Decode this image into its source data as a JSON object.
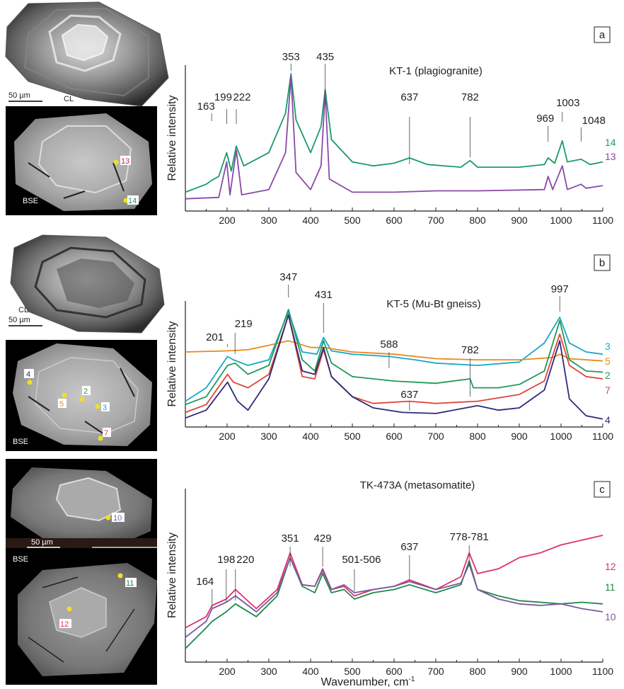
{
  "figure": {
    "x_axis_label": "Wavenumber, cm",
    "x_axis_label_sup": "-1",
    "colors": {
      "green": "#1a9a6c",
      "purple": "#8a4aa8",
      "cyan": "#19a8c8",
      "orange": "#e88a1a",
      "green2": "#1f9a5a",
      "red": "#e0453a",
      "navy": "#2d2a7a",
      "pink": "#e0306a",
      "green3": "#1f8a4a",
      "lavender": "#7a5aa0"
    }
  },
  "images": {
    "a_cl_label": "CL",
    "a_scale": "50 µm",
    "a_bse_label": "BSE",
    "a_spot_13": "13",
    "a_spot_14": "14",
    "b_cl_label": "CL",
    "b_scale": "50 µm",
    "b_bse_label": "BSE",
    "b_spot_4": "4",
    "b_spot_5": "5",
    "b_spot_2": "2",
    "b_spot_3": "3",
    "b_spot_7": "7",
    "c_scale": "50 µm",
    "c_bse_label": "BSE",
    "c_spot_10": "10",
    "c_spot_11": "11",
    "c_spot_12": "12"
  },
  "chart_data": [
    {
      "type": "line",
      "panel_label": "a",
      "title": "KT-1 (plagiogranite)",
      "ylabel": "Relative intensity",
      "xlim": [
        100,
        1100
      ],
      "x_ticks": [
        "200",
        "300",
        "400",
        "500",
        "600",
        "700",
        "800",
        "900",
        "1000",
        "1100"
      ],
      "peak_labels": [
        "163",
        "199",
        "222",
        "353",
        "435",
        "637",
        "782",
        "969",
        "1003",
        "1048"
      ],
      "series": [
        {
          "name": "14",
          "points": [
            [
              100,
              0.1
            ],
            [
              150,
              0.16
            ],
            [
              163,
              0.19
            ],
            [
              180,
              0.22
            ],
            [
              199,
              0.4
            ],
            [
              210,
              0.26
            ],
            [
              222,
              0.45
            ],
            [
              240,
              0.3
            ],
            [
              300,
              0.4
            ],
            [
              340,
              0.7
            ],
            [
              353,
              1.0
            ],
            [
              365,
              0.65
            ],
            [
              400,
              0.4
            ],
            [
              425,
              0.6
            ],
            [
              435,
              0.88
            ],
            [
              450,
              0.5
            ],
            [
              500,
              0.33
            ],
            [
              550,
              0.3
            ],
            [
              600,
              0.32
            ],
            [
              637,
              0.36
            ],
            [
              680,
              0.31
            ],
            [
              760,
              0.29
            ],
            [
              782,
              0.34
            ],
            [
              800,
              0.29
            ],
            [
              900,
              0.29
            ],
            [
              960,
              0.31
            ],
            [
              969,
              0.36
            ],
            [
              985,
              0.32
            ],
            [
              1003,
              0.49
            ],
            [
              1015,
              0.33
            ],
            [
              1048,
              0.35
            ],
            [
              1070,
              0.31
            ],
            [
              1100,
              0.33
            ]
          ]
        },
        {
          "name": "13",
          "points": [
            [
              100,
              0.05
            ],
            [
              180,
              0.06
            ],
            [
              199,
              0.33
            ],
            [
              207,
              0.08
            ],
            [
              222,
              0.42
            ],
            [
              235,
              0.08
            ],
            [
              300,
              0.12
            ],
            [
              340,
              0.4
            ],
            [
              353,
              0.98
            ],
            [
              365,
              0.25
            ],
            [
              400,
              0.12
            ],
            [
              425,
              0.3
            ],
            [
              435,
              0.86
            ],
            [
              445,
              0.2
            ],
            [
              500,
              0.1
            ],
            [
              600,
              0.1
            ],
            [
              700,
              0.11
            ],
            [
              800,
              0.11
            ],
            [
              960,
              0.12
            ],
            [
              969,
              0.22
            ],
            [
              980,
              0.12
            ],
            [
              1003,
              0.3
            ],
            [
              1015,
              0.12
            ],
            [
              1048,
              0.16
            ],
            [
              1060,
              0.13
            ],
            [
              1100,
              0.15
            ]
          ]
        }
      ]
    },
    {
      "type": "line",
      "panel_label": "b",
      "title": "KT-5 (Mu-Bt gneiss)",
      "ylabel": "Relative intensity",
      "xlim": [
        100,
        1100
      ],
      "x_ticks": [
        "200",
        "300",
        "400",
        "500",
        "600",
        "700",
        "800",
        "900",
        "1000",
        "1100"
      ],
      "peak_labels": [
        "201",
        "219",
        "347",
        "431",
        "588",
        "782",
        "637",
        "997"
      ],
      "series": [
        {
          "name": "3",
          "points": [
            [
              100,
              0.18
            ],
            [
              150,
              0.3
            ],
            [
              201,
              0.58
            ],
            [
              215,
              0.55
            ],
            [
              250,
              0.5
            ],
            [
              300,
              0.55
            ],
            [
              347,
              0.98
            ],
            [
              380,
              0.62
            ],
            [
              415,
              0.6
            ],
            [
              431,
              0.75
            ],
            [
              450,
              0.63
            ],
            [
              500,
              0.6
            ],
            [
              588,
              0.58
            ],
            [
              650,
              0.55
            ],
            [
              700,
              0.52
            ],
            [
              800,
              0.5
            ],
            [
              900,
              0.53
            ],
            [
              960,
              0.7
            ],
            [
              997,
              0.93
            ],
            [
              1020,
              0.7
            ],
            [
              1060,
              0.62
            ],
            [
              1100,
              0.6
            ]
          ]
        },
        {
          "name": "5",
          "points": [
            [
              100,
              0.62
            ],
            [
              200,
              0.63
            ],
            [
              250,
              0.64
            ],
            [
              300,
              0.68
            ],
            [
              347,
              0.72
            ],
            [
              400,
              0.66
            ],
            [
              431,
              0.66
            ],
            [
              500,
              0.62
            ],
            [
              600,
              0.6
            ],
            [
              700,
              0.56
            ],
            [
              800,
              0.55
            ],
            [
              900,
              0.55
            ],
            [
              980,
              0.57
            ],
            [
              997,
              0.6
            ],
            [
              1020,
              0.56
            ],
            [
              1100,
              0.54
            ]
          ]
        },
        {
          "name": "2",
          "points": [
            [
              100,
              0.15
            ],
            [
              150,
              0.22
            ],
            [
              201,
              0.5
            ],
            [
              219,
              0.52
            ],
            [
              250,
              0.42
            ],
            [
              300,
              0.5
            ],
            [
              347,
              1.0
            ],
            [
              380,
              0.55
            ],
            [
              410,
              0.45
            ],
            [
              431,
              0.72
            ],
            [
              450,
              0.52
            ],
            [
              500,
              0.4
            ],
            [
              600,
              0.36
            ],
            [
              700,
              0.34
            ],
            [
              782,
              0.38
            ],
            [
              790,
              0.3
            ],
            [
              850,
              0.3
            ],
            [
              900,
              0.33
            ],
            [
              960,
              0.45
            ],
            [
              997,
              0.9
            ],
            [
              1020,
              0.55
            ],
            [
              1060,
              0.45
            ],
            [
              1100,
              0.44
            ]
          ]
        },
        {
          "name": "7",
          "points": [
            [
              100,
              0.08
            ],
            [
              150,
              0.15
            ],
            [
              201,
              0.42
            ],
            [
              215,
              0.35
            ],
            [
              250,
              0.3
            ],
            [
              300,
              0.42
            ],
            [
              347,
              0.95
            ],
            [
              380,
              0.4
            ],
            [
              410,
              0.38
            ],
            [
              431,
              0.64
            ],
            [
              450,
              0.4
            ],
            [
              500,
              0.22
            ],
            [
              550,
              0.16
            ],
            [
              637,
              0.18
            ],
            [
              700,
              0.16
            ],
            [
              800,
              0.18
            ],
            [
              900,
              0.24
            ],
            [
              960,
              0.36
            ],
            [
              997,
              0.78
            ],
            [
              1020,
              0.5
            ],
            [
              1060,
              0.4
            ],
            [
              1100,
              0.38
            ]
          ]
        },
        {
          "name": "4",
          "points": [
            [
              100,
              0.03
            ],
            [
              150,
              0.1
            ],
            [
              201,
              0.35
            ],
            [
              225,
              0.18
            ],
            [
              250,
              0.1
            ],
            [
              300,
              0.38
            ],
            [
              347,
              0.95
            ],
            [
              380,
              0.45
            ],
            [
              410,
              0.42
            ],
            [
              431,
              0.66
            ],
            [
              450,
              0.4
            ],
            [
              500,
              0.22
            ],
            [
              550,
              0.12
            ],
            [
              620,
              0.08
            ],
            [
              700,
              0.07
            ],
            [
              800,
              0.14
            ],
            [
              850,
              0.1
            ],
            [
              900,
              0.12
            ],
            [
              960,
              0.28
            ],
            [
              997,
              0.72
            ],
            [
              1020,
              0.2
            ],
            [
              1060,
              0.05
            ],
            [
              1100,
              0.02
            ]
          ]
        }
      ]
    },
    {
      "type": "line",
      "panel_label": "c",
      "title": "TK-473A (metasomatite)",
      "ylabel": "Relative intensity",
      "xlim": [
        100,
        1100
      ],
      "x_ticks": [
        "200",
        "300",
        "400",
        "500",
        "600",
        "700",
        "800",
        "900",
        "1000",
        "1100"
      ],
      "peak_labels": [
        "164",
        "198",
        "220",
        "351",
        "429",
        "501-506",
        "637",
        "778-781"
      ],
      "series": [
        {
          "name": "12",
          "points": [
            [
              100,
              0.18
            ],
            [
              150,
              0.25
            ],
            [
              164,
              0.32
            ],
            [
              198,
              0.36
            ],
            [
              220,
              0.42
            ],
            [
              270,
              0.3
            ],
            [
              320,
              0.42
            ],
            [
              351,
              0.65
            ],
            [
              380,
              0.45
            ],
            [
              410,
              0.44
            ],
            [
              429,
              0.55
            ],
            [
              450,
              0.42
            ],
            [
              480,
              0.44
            ],
            [
              505,
              0.38
            ],
            [
              550,
              0.42
            ],
            [
              600,
              0.44
            ],
            [
              637,
              0.48
            ],
            [
              700,
              0.42
            ],
            [
              760,
              0.5
            ],
            [
              780,
              0.65
            ],
            [
              800,
              0.52
            ],
            [
              850,
              0.55
            ],
            [
              900,
              0.62
            ],
            [
              950,
              0.65
            ],
            [
              1000,
              0.7
            ],
            [
              1050,
              0.73
            ],
            [
              1100,
              0.76
            ]
          ]
        },
        {
          "name": "11",
          "points": [
            [
              100,
              0.05
            ],
            [
              150,
              0.18
            ],
            [
              164,
              0.22
            ],
            [
              198,
              0.28
            ],
            [
              220,
              0.33
            ],
            [
              270,
              0.25
            ],
            [
              320,
              0.38
            ],
            [
              351,
              0.62
            ],
            [
              380,
              0.44
            ],
            [
              410,
              0.4
            ],
            [
              429,
              0.52
            ],
            [
              450,
              0.4
            ],
            [
              480,
              0.42
            ],
            [
              505,
              0.36
            ],
            [
              550,
              0.4
            ],
            [
              600,
              0.42
            ],
            [
              637,
              0.45
            ],
            [
              700,
              0.4
            ],
            [
              760,
              0.45
            ],
            [
              780,
              0.6
            ],
            [
              800,
              0.42
            ],
            [
              850,
              0.38
            ],
            [
              900,
              0.35
            ],
            [
              950,
              0.34
            ],
            [
              1000,
              0.33
            ],
            [
              1050,
              0.34
            ],
            [
              1100,
              0.33
            ]
          ]
        },
        {
          "name": "10",
          "points": [
            [
              100,
              0.12
            ],
            [
              150,
              0.22
            ],
            [
              164,
              0.3
            ],
            [
              198,
              0.34
            ],
            [
              220,
              0.38
            ],
            [
              270,
              0.28
            ],
            [
              320,
              0.4
            ],
            [
              351,
              0.62
            ],
            [
              380,
              0.45
            ],
            [
              410,
              0.44
            ],
            [
              429,
              0.54
            ],
            [
              450,
              0.42
            ],
            [
              480,
              0.45
            ],
            [
              505,
              0.4
            ],
            [
              550,
              0.42
            ],
            [
              600,
              0.44
            ],
            [
              637,
              0.47
            ],
            [
              700,
              0.42
            ],
            [
              760,
              0.46
            ],
            [
              780,
              0.58
            ],
            [
              800,
              0.42
            ],
            [
              850,
              0.36
            ],
            [
              900,
              0.33
            ],
            [
              950,
              0.32
            ],
            [
              1000,
              0.33
            ],
            [
              1050,
              0.3
            ],
            [
              1100,
              0.28
            ]
          ]
        }
      ]
    }
  ]
}
